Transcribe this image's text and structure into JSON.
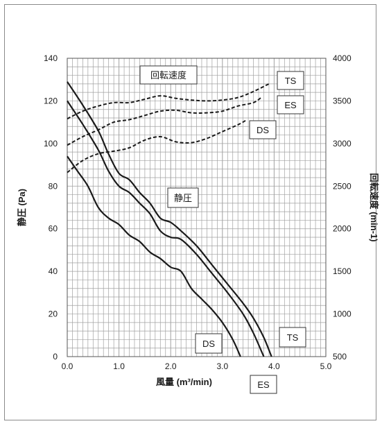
{
  "chart_data": {
    "type": "line",
    "xlabel": "風量 (m³/min)",
    "ylabel": "静圧 (Pa)",
    "y2label": "回転速度 (min-1)",
    "xlim": [
      0,
      5
    ],
    "ylim": [
      0,
      140
    ],
    "y2lim": [
      500,
      4000
    ],
    "grid": true,
    "x_ticks": [
      "0.0",
      "1.0",
      "2.0",
      "3.0",
      "4.0",
      "5.0"
    ],
    "y_ticks": [
      "0",
      "20",
      "40",
      "60",
      "80",
      "100",
      "120",
      "140"
    ],
    "y2_ticks": [
      "500",
      "1000",
      "1500",
      "2000",
      "2500",
      "3000",
      "3500",
      "4000"
    ],
    "group_labels": {
      "pressure": "静圧",
      "speed": "回転速度"
    },
    "pressure_series": [
      {
        "name": "TS",
        "x": [
          0,
          0.3,
          0.6,
          0.8,
          1.0,
          1.2,
          1.4,
          1.6,
          1.8,
          2.0,
          2.2,
          2.5,
          2.8,
          3.1,
          3.4,
          3.6,
          3.8,
          3.95
        ],
        "y": [
          129,
          118,
          106,
          95,
          86,
          83,
          77,
          72,
          65,
          63,
          59,
          52,
          43,
          34,
          25,
          18,
          9,
          0
        ]
      },
      {
        "name": "ES",
        "x": [
          0,
          0.3,
          0.6,
          0.8,
          1.0,
          1.2,
          1.4,
          1.6,
          1.8,
          2.0,
          2.2,
          2.5,
          2.8,
          3.1,
          3.4,
          3.6,
          3.8
        ],
        "y": [
          120,
          109,
          97,
          87,
          80,
          77,
          72,
          67,
          59,
          56,
          55,
          48,
          39,
          30,
          20,
          11,
          0
        ]
      },
      {
        "name": "DS",
        "x": [
          0,
          0.2,
          0.4,
          0.6,
          0.8,
          1.0,
          1.2,
          1.4,
          1.6,
          1.8,
          2.0,
          2.2,
          2.4,
          2.6,
          2.8,
          3.0,
          3.2,
          3.35
        ],
        "y": [
          94,
          87,
          80,
          70,
          65,
          62,
          57,
          54,
          49,
          46,
          42,
          40,
          32,
          27,
          22,
          16,
          8,
          0
        ]
      }
    ],
    "speed_series": [
      {
        "name": "TS",
        "x": [
          0,
          0.3,
          0.6,
          0.9,
          1.2,
          1.5,
          1.8,
          2.1,
          2.4,
          2.7,
          3.0,
          3.3,
          3.6,
          3.9
        ],
        "y": [
          3290,
          3380,
          3440,
          3480,
          3480,
          3520,
          3560,
          3530,
          3510,
          3500,
          3510,
          3540,
          3610,
          3700
        ]
      },
      {
        "name": "ES",
        "x": [
          0,
          0.3,
          0.6,
          0.9,
          1.2,
          1.5,
          1.8,
          2.1,
          2.4,
          2.7,
          3.0,
          3.3,
          3.6,
          3.75
        ],
        "y": [
          2980,
          3080,
          3160,
          3250,
          3280,
          3330,
          3380,
          3390,
          3360,
          3360,
          3380,
          3440,
          3480,
          3540
        ]
      },
      {
        "name": "DS",
        "x": [
          0,
          0.3,
          0.6,
          0.9,
          1.2,
          1.5,
          1.8,
          2.1,
          2.4,
          2.7,
          3.0,
          3.3,
          3.45
        ],
        "y": [
          2660,
          2800,
          2880,
          2910,
          2950,
          3040,
          3080,
          3020,
          3010,
          3060,
          3140,
          3220,
          3270
        ]
      }
    ],
    "annotations": [
      {
        "text": "回転速度",
        "for": "speed-group"
      },
      {
        "text": "静圧",
        "for": "pressure-group"
      },
      {
        "text": "TS",
        "for": "speed-TS"
      },
      {
        "text": "ES",
        "for": "speed-ES"
      },
      {
        "text": "DS",
        "for": "speed-DS"
      },
      {
        "text": "TS",
        "for": "pressure-TS"
      },
      {
        "text": "DS",
        "for": "pressure-DS"
      },
      {
        "text": "ES",
        "for": "pressure-ES"
      }
    ],
    "colors": {
      "line": "#1a1a1a",
      "grid": "#a0a0a0",
      "frame": "#8a8a8a"
    }
  }
}
